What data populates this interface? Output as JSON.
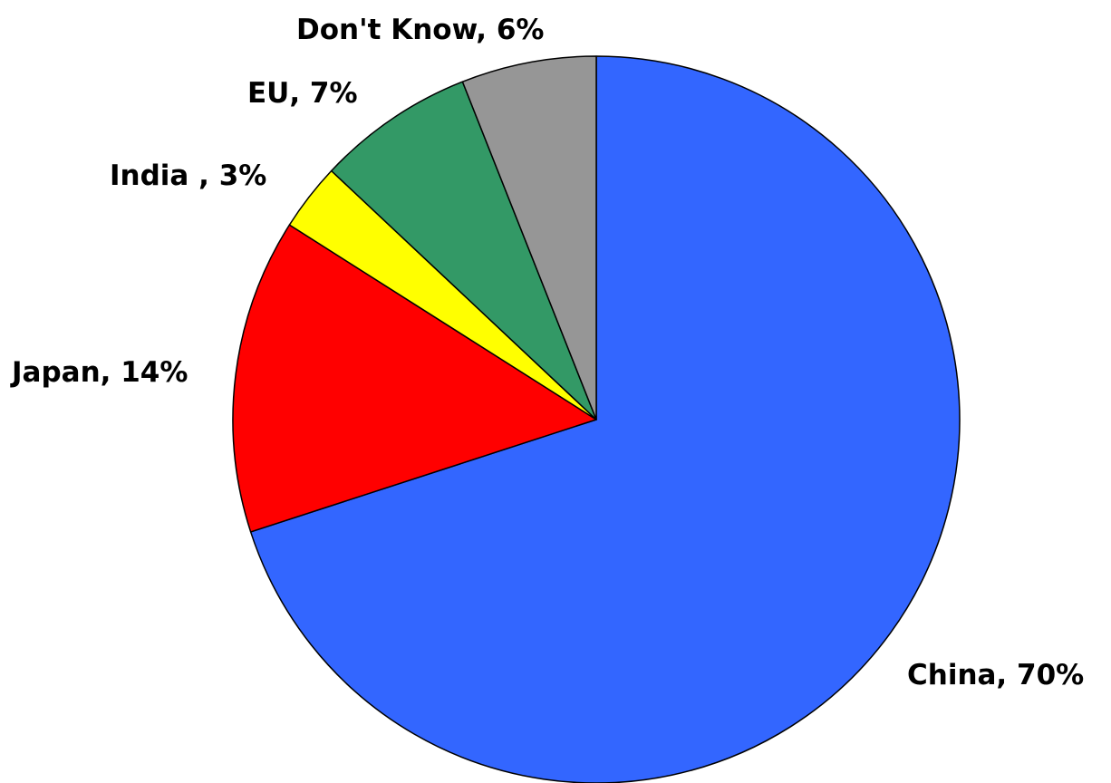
{
  "chart_data": {
    "type": "pie",
    "start_angle_deg": 0,
    "direction": "clockwise",
    "slices": [
      {
        "name": "China",
        "value": 70,
        "label": "China, 70%",
        "color": "#3366FF"
      },
      {
        "name": "Japan",
        "value": 14,
        "label": "Japan, 14%",
        "color": "#FF0000"
      },
      {
        "name": "India",
        "value": 3,
        "label": "India , 3%",
        "color": "#FFFF00"
      },
      {
        "name": "EU",
        "value": 7,
        "label": "EU, 7%",
        "color": "#339966"
      },
      {
        "name": "Don't Know",
        "value": 6,
        "label": "Don't Know, 6%",
        "color": "#969696"
      }
    ]
  }
}
